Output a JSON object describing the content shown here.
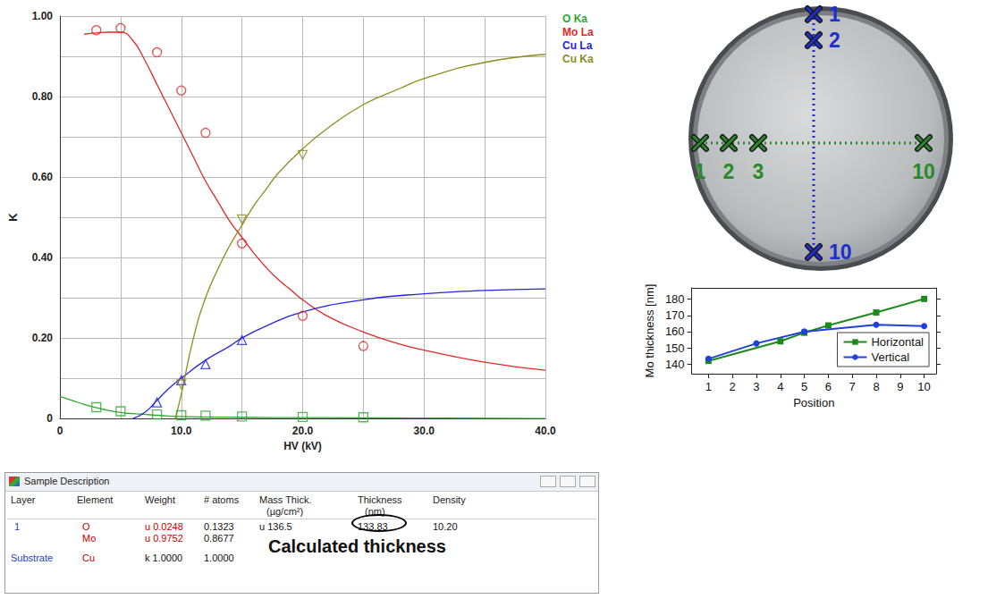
{
  "chart_data": [
    {
      "type": "scatter",
      "x_label": "HV (kV)",
      "y_label": "K",
      "xlim": [
        0,
        40
      ],
      "xticks": [
        0,
        {
          "value": 10,
          "label": "10.0"
        },
        {
          "value": 20,
          "label": "20.0"
        },
        {
          "value": 30,
          "label": "30.0"
        },
        {
          "value": 40,
          "label": "40.0"
        }
      ],
      "ylim": [
        0,
        1
      ],
      "yticks": [
        0,
        {
          "value": 0.2,
          "label": "0.20"
        },
        {
          "value": 0.4,
          "label": "0.40"
        },
        {
          "value": 0.6,
          "label": "0.60"
        },
        {
          "value": 0.8,
          "label": "0.80"
        },
        {
          "value": 1,
          "label": "1.00"
        }
      ],
      "grid": true,
      "legend": "upper right",
      "series": [
        {
          "name": "O Ka",
          "type": "scatter",
          "color": "#2ea82e",
          "marker": "open_square",
          "x": [
            3,
            5,
            8,
            10,
            12,
            15,
            20,
            25
          ],
          "values": [
            0.028,
            0.018,
            0.01,
            0.008,
            0.007,
            0.005,
            0.004,
            0.003
          ]
        },
        {
          "name": "Mo La",
          "type": "scatter",
          "color": "#e02828",
          "marker": "open_circle",
          "x": [
            3,
            5,
            8,
            10,
            12,
            15,
            20,
            25
          ],
          "values": [
            0.965,
            0.97,
            0.91,
            0.815,
            0.71,
            0.435,
            0.255,
            0.18
          ]
        },
        {
          "name": "Cu La",
          "type": "scatter",
          "color": "#2424e0",
          "marker": "open_triangle",
          "x": [
            8,
            10,
            12,
            15
          ],
          "values": [
            0.04,
            0.095,
            0.135,
            0.195
          ]
        },
        {
          "name": "Cu Ka",
          "type": "scatter",
          "color": "#8c8c1e",
          "marker": "open_triangle_down",
          "x": [
            10,
            15,
            20
          ],
          "values": [
            0.085,
            0.495,
            0.655
          ]
        },
        {
          "name": "O Ka",
          "type": "line",
          "color": "#2ea82e",
          "line_style": "solid",
          "x": [
            0,
            1,
            2,
            3,
            4,
            5,
            6,
            8,
            10,
            15,
            20,
            30,
            40
          ],
          "values": [
            0.055,
            0.045,
            0.035,
            0.027,
            0.02,
            0.015,
            0.012,
            0.008,
            0.005,
            0.003,
            0.002,
            0.001,
            0
          ]
        },
        {
          "name": "Mo La",
          "type": "line",
          "color": "#e02828",
          "line_style": "solid",
          "x": [
            2,
            3,
            4,
            5,
            6,
            7,
            8,
            9,
            10,
            11,
            12,
            13,
            14,
            15,
            16,
            17,
            18,
            19,
            20,
            22,
            25,
            28,
            30,
            35,
            40
          ],
          "values": [
            0.955,
            0.958,
            0.96,
            0.96,
            0.94,
            0.89,
            0.83,
            0.77,
            0.71,
            0.65,
            0.59,
            0.54,
            0.49,
            0.45,
            0.41,
            0.375,
            0.345,
            0.32,
            0.295,
            0.255,
            0.215,
            0.185,
            0.17,
            0.14,
            0.12
          ]
        },
        {
          "name": "Cu La",
          "type": "line",
          "color": "#2424e0",
          "line_style": "solid",
          "x": [
            6,
            7,
            8,
            9,
            10,
            12,
            14,
            15,
            17,
            20,
            25,
            30,
            35,
            40
          ],
          "values": [
            0,
            0.015,
            0.045,
            0.075,
            0.1,
            0.145,
            0.18,
            0.2,
            0.23,
            0.265,
            0.295,
            0.31,
            0.318,
            0.322
          ]
        },
        {
          "name": "Cu Ka",
          "type": "line",
          "color": "#8c8c1e",
          "line_style": "solid",
          "x": [
            9.5,
            10,
            11,
            12,
            13,
            14,
            15,
            16,
            17,
            18,
            20,
            22,
            25,
            28,
            30,
            35,
            40
          ],
          "values": [
            0,
            0.06,
            0.2,
            0.3,
            0.37,
            0.43,
            0.48,
            0.53,
            0.57,
            0.61,
            0.67,
            0.72,
            0.78,
            0.82,
            0.845,
            0.885,
            0.905
          ]
        }
      ]
    },
    {
      "type": "line",
      "x_label": "Position",
      "y_label": "Mo thickness [nm]",
      "xlim": [
        0.3,
        10.5
      ],
      "xticks": [
        1,
        2,
        3,
        4,
        5,
        6,
        7,
        8,
        9,
        10
      ],
      "ylim": [
        134,
        187
      ],
      "yticks": [
        140,
        150,
        160,
        170,
        180
      ],
      "grid": false,
      "legend": "lower right",
      "series": [
        {
          "name": "Horizontal",
          "color": "#1b8a1b",
          "marker": "square",
          "line_style": "solid",
          "x": [
            1,
            4,
            5,
            6,
            8,
            10
          ],
          "values": [
            141.9,
            154,
            159.3,
            163.8,
            171.8,
            180.2
          ]
        },
        {
          "name": "Vertical",
          "color": "#1f3fe0",
          "marker": "circle",
          "line_style": "solid",
          "x": [
            1,
            3,
            5,
            8,
            10
          ],
          "values": [
            143.2,
            152.7,
            160,
            164.2,
            163.4
          ]
        }
      ]
    }
  ],
  "sample_description": {
    "title": "Sample Description",
    "columns": [
      {
        "name": "Layer",
        "unit": null
      },
      {
        "name": "Element",
        "unit": null
      },
      {
        "name": "Weight",
        "unit": null
      },
      {
        "name": "# atoms",
        "unit": null
      },
      {
        "name": "Mass Thick.",
        "unit": "(µg/cm²)"
      },
      {
        "name": "Thickness",
        "unit": "(nm)"
      },
      {
        "name": "Density",
        "unit": null
      }
    ],
    "rows": [
      [
        "1",
        "O",
        "u 0.0248",
        "0.1323",
        "u 136.5",
        "133.83",
        "10.20"
      ],
      [
        null,
        "Mo",
        "u 0.9752",
        "0.8677",
        null,
        null,
        null
      ],
      [
        "Substrate",
        "Cu",
        "k 1.0000",
        "1.0000",
        null,
        null,
        null
      ]
    ]
  },
  "caption": "Calculated thickness",
  "photo": {
    "vertical_points": [
      "1",
      "2",
      "10"
    ],
    "horizontal_points": [
      "1",
      "2",
      "3",
      "10"
    ]
  }
}
